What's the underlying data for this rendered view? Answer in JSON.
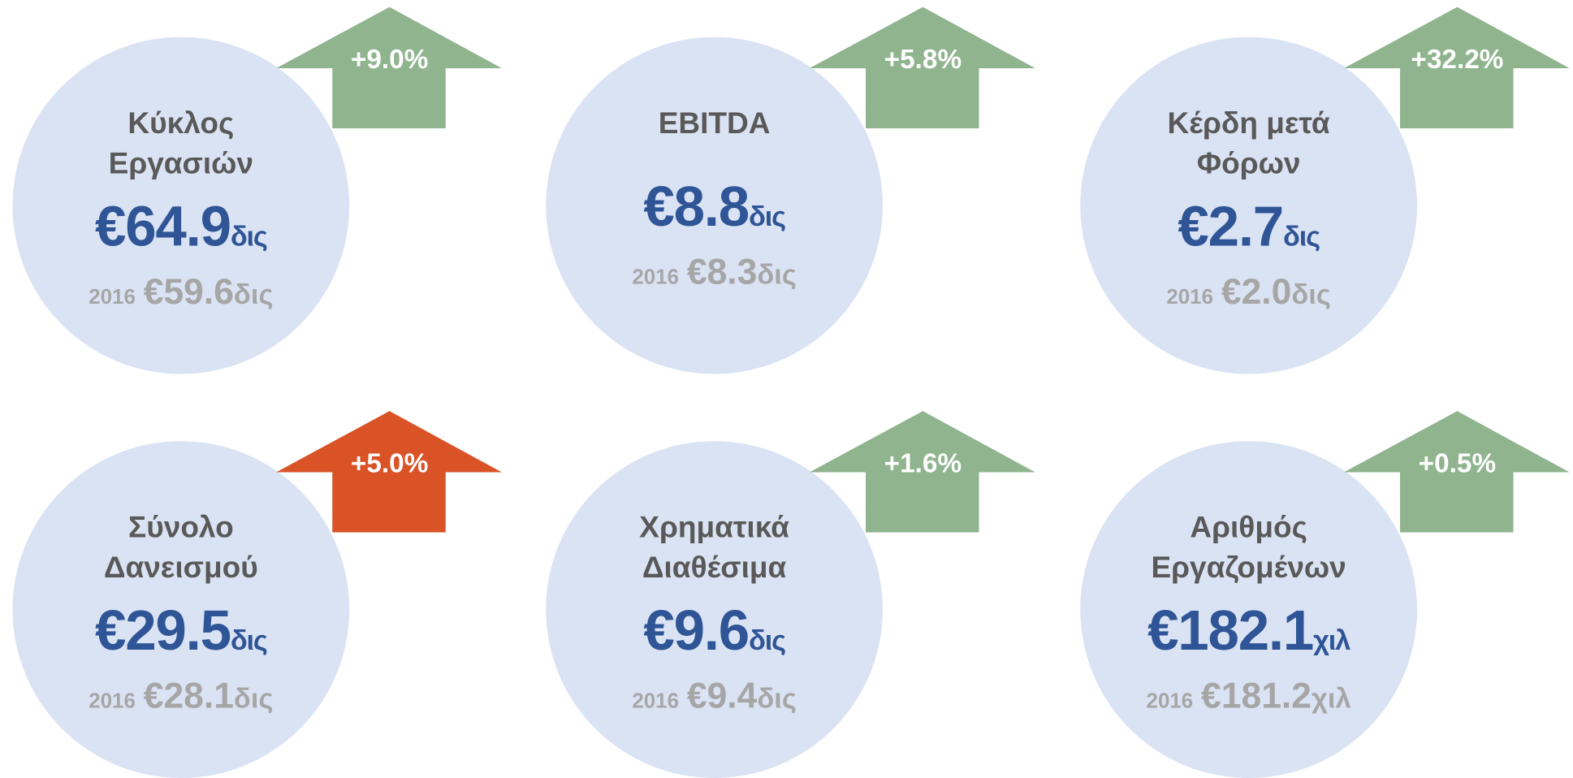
{
  "cards": [
    {
      "label": [
        "Κύκλος",
        "Εργασιών"
      ],
      "value": "€64.9",
      "unit": "δις",
      "year": "2016",
      "prev_value": "€59.6",
      "prev_unit": "δις",
      "change": "+9.0%",
      "color": "#8fb48e"
    },
    {
      "label": [
        "EBITDA"
      ],
      "value": "€8.8",
      "unit": "δις",
      "year": "2016",
      "prev_value": "€8.3",
      "prev_unit": "δις",
      "change": "+5.8%",
      "color": "#8fb48e"
    },
    {
      "label": [
        "Κέρδη μετά",
        "Φόρων"
      ],
      "value": "€2.7",
      "unit": "δις",
      "year": "2016",
      "prev_value": "€2.0",
      "prev_unit": "δις",
      "change": "+32.2%",
      "color": "#8fb48e"
    },
    {
      "label": [
        "Σύνολο",
        "Δανεισμού"
      ],
      "value": "€29.5",
      "unit": "δις",
      "year": "2016",
      "prev_value": "€28.1",
      "prev_unit": "δις",
      "change": "+5.0%",
      "color": "#d95327"
    },
    {
      "label": [
        "Χρηματικά",
        "Διαθέσιμα"
      ],
      "value": "€9.6",
      "unit": "δις",
      "year": "2016",
      "prev_value": "€9.4",
      "prev_unit": "δις",
      "change": "+1.6%",
      "color": "#8fb48e"
    },
    {
      "label": [
        "Αριθμός",
        "Εργαζομένων"
      ],
      "value": "€182.1",
      "unit": "χιλ",
      "year": "2016",
      "prev_value": "€181.2",
      "prev_unit": "χιλ",
      "change": "+0.5%",
      "color": "#8fb48e"
    }
  ]
}
